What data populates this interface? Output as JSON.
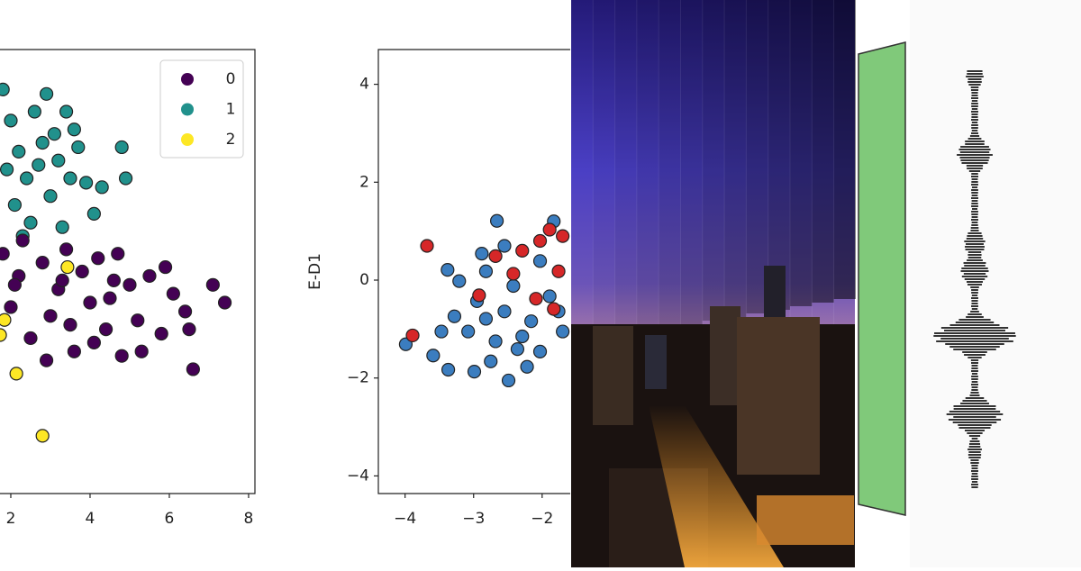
{
  "panels": [
    {
      "type": "scatter",
      "xlim": [
        -2,
        8.16
      ],
      "ylim": [
        -4.5,
        5.5
      ],
      "xticks": [
        2,
        4,
        6,
        8
      ],
      "legend": "upper right",
      "series": [
        {
          "name": "1",
          "color": "#21918c",
          "x": [
            1.8,
            2.0,
            2.2,
            2.4,
            2.6,
            2.8,
            3.0,
            3.2,
            3.4,
            3.5,
            3.7,
            3.9,
            4.1,
            4.3,
            4.8,
            4.9,
            2.1,
            2.5,
            2.9,
            3.3,
            3.6,
            2.3,
            2.7,
            3.1,
            1.9
          ],
          "y": [
            4.6,
            3.9,
            3.2,
            2.6,
            4.1,
            3.4,
            2.2,
            3.0,
            4.1,
            2.6,
            3.3,
            2.5,
            1.8,
            2.4,
            3.3,
            2.6,
            2.0,
            1.6,
            4.5,
            1.5,
            3.7,
            1.3,
            2.9,
            3.6,
            2.8
          ]
        },
        {
          "name": "0",
          "color": "#440154",
          "x": [
            1.8,
            2.0,
            2.2,
            2.5,
            2.8,
            3.0,
            3.2,
            3.4,
            3.6,
            3.8,
            4.0,
            4.2,
            4.4,
            4.6,
            4.8,
            5.0,
            5.2,
            5.5,
            5.8,
            6.1,
            6.4,
            6.6,
            7.1,
            7.4,
            2.3,
            2.9,
            3.5,
            4.1,
            4.7,
            5.3,
            5.9,
            6.5,
            2.1,
            3.3,
            4.5
          ],
          "y": [
            0.9,
            -0.3,
            0.4,
            -1.0,
            0.7,
            -0.5,
            0.1,
            1.0,
            -1.3,
            0.5,
            -0.2,
            0.8,
            -0.8,
            0.3,
            -1.4,
            0.2,
            -0.6,
            0.4,
            -0.9,
            0.0,
            -0.4,
            -1.7,
            0.2,
            -0.2,
            1.2,
            -1.5,
            -0.7,
            -1.1,
            0.9,
            -1.3,
            0.6,
            -0.8,
            0.2,
            0.3,
            -0.1
          ]
        },
        {
          "name": "2",
          "color": "#fde725",
          "x": [
            1.84,
            2.14,
            2.8,
            1.73,
            3.43
          ],
          "y": [
            -0.59,
            -1.8,
            -3.2,
            -0.93,
            0.6
          ]
        }
      ]
    },
    {
      "type": "scatter",
      "ylabel": "E-D1",
      "xlim": [
        -4.39,
        -1.59
      ],
      "ylim": [
        -4.36,
        4.71
      ],
      "xticks": [
        {
          "value": -4,
          "label": "−4"
        },
        {
          "value": -3,
          "label": "−3"
        },
        {
          "value": -2,
          "label": "−2"
        }
      ],
      "yticks": [
        4,
        2,
        0,
        {
          "value": -2,
          "label": "−2"
        },
        {
          "value": -4,
          "label": "−4"
        }
      ],
      "series": [
        {
          "color": "#3b7dbf",
          "x": [
            -2.66,
            -3.38,
            -3.37,
            -3.99,
            -3.59,
            -2.99,
            -2.49,
            -1.83,
            -3.21,
            -2.82,
            -2.95,
            -2.55,
            -2.16,
            -3.08,
            -2.68,
            -2.03,
            -2.29,
            -1.89,
            -2.42,
            -2.75,
            -3.28,
            -2.22,
            -1.76,
            -2.55,
            -2.88,
            -2.03,
            -1.7,
            -3.47,
            -2.82,
            -2.36
          ],
          "y": [
            1.21,
            0.21,
            -1.83,
            -1.31,
            -1.54,
            -1.87,
            -2.05,
            1.2,
            -0.02,
            0.18,
            -0.43,
            -0.64,
            -0.84,
            -1.05,
            -1.25,
            -1.46,
            -1.15,
            -0.33,
            -0.12,
            -1.66,
            -0.74,
            -1.77,
            -0.64,
            0.7,
            0.54,
            0.39,
            -1.05,
            -1.05,
            -0.79,
            -1.41
          ]
        },
        {
          "color": "#d62728",
          "x": [
            -3.68,
            -3.89,
            -1.89,
            -2.68,
            -2.29,
            -2.03,
            -1.76,
            -2.92,
            -2.09,
            -2.42,
            -1.83,
            -1.7
          ],
          "y": [
            0.7,
            -1.13,
            1.03,
            0.49,
            0.6,
            0.8,
            0.18,
            -0.31,
            -0.38,
            0.13,
            -0.59,
            0.9
          ]
        }
      ]
    }
  ]
}
